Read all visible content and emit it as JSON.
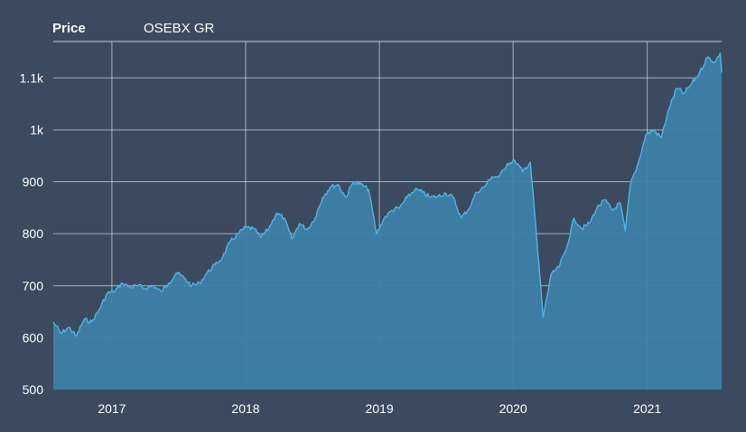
{
  "header": {
    "price_label": "Price",
    "series_label": "OSEBX GR"
  },
  "colors": {
    "background": "#3b4a5e",
    "grid": "#c9d2dc",
    "line": "#4fb4e6",
    "fill": "#3d7fa8",
    "text": "#ffffff"
  },
  "chart_data": {
    "type": "area",
    "title": "Price",
    "xlabel": "",
    "ylabel": "",
    "legend": "top-left",
    "grid": true,
    "xlim": [
      "2016-07-25",
      "2021-07-23"
    ],
    "ylim": [
      500,
      1170
    ],
    "y_ticks": [
      {
        "value": 500,
        "label": "500"
      },
      {
        "value": 600,
        "label": "600"
      },
      {
        "value": 700,
        "label": "700"
      },
      {
        "value": 800,
        "label": "800"
      },
      {
        "value": 900,
        "label": "900"
      },
      {
        "value": 1000,
        "label": "1k"
      },
      {
        "value": 1100,
        "label": "1.1k"
      }
    ],
    "x_ticks": [
      {
        "value": "2017-01-01",
        "label": "2017"
      },
      {
        "value": "2018-01-01",
        "label": "2018"
      },
      {
        "value": "2019-01-01",
        "label": "2019"
      },
      {
        "value": "2020-01-01",
        "label": "2020"
      },
      {
        "value": "2021-01-01",
        "label": "2021"
      }
    ],
    "series": [
      {
        "name": "OSEBX GR",
        "points": [
          [
            "2016-07-25",
            630
          ],
          [
            "2016-08-15",
            608
          ],
          [
            "2016-09-05",
            620
          ],
          [
            "2016-09-26",
            603
          ],
          [
            "2016-10-17",
            635
          ],
          [
            "2016-11-07",
            630
          ],
          [
            "2016-11-28",
            655
          ],
          [
            "2016-12-19",
            685
          ],
          [
            "2017-01-09",
            690
          ],
          [
            "2017-01-30",
            705
          ],
          [
            "2017-02-20",
            697
          ],
          [
            "2017-03-13",
            700
          ],
          [
            "2017-04-03",
            695
          ],
          [
            "2017-04-24",
            700
          ],
          [
            "2017-05-15",
            688
          ],
          [
            "2017-06-05",
            705
          ],
          [
            "2017-06-26",
            725
          ],
          [
            "2017-07-17",
            715
          ],
          [
            "2017-08-07",
            700
          ],
          [
            "2017-08-28",
            705
          ],
          [
            "2017-09-18",
            725
          ],
          [
            "2017-10-09",
            740
          ],
          [
            "2017-10-30",
            755
          ],
          [
            "2017-11-20",
            785
          ],
          [
            "2017-12-11",
            800
          ],
          [
            "2018-01-01",
            812
          ],
          [
            "2018-01-22",
            810
          ],
          [
            "2018-02-12",
            793
          ],
          [
            "2018-03-05",
            810
          ],
          [
            "2018-03-26",
            840
          ],
          [
            "2018-04-16",
            830
          ],
          [
            "2018-05-07",
            790
          ],
          [
            "2018-05-28",
            820
          ],
          [
            "2018-06-18",
            808
          ],
          [
            "2018-07-09",
            830
          ],
          [
            "2018-07-30",
            870
          ],
          [
            "2018-08-20",
            890
          ],
          [
            "2018-09-10",
            895
          ],
          [
            "2018-10-01",
            870
          ],
          [
            "2018-10-22",
            900
          ],
          [
            "2018-11-12",
            895
          ],
          [
            "2018-12-03",
            885
          ],
          [
            "2018-12-24",
            800
          ],
          [
            "2019-01-14",
            830
          ],
          [
            "2019-02-04",
            845
          ],
          [
            "2019-02-25",
            850
          ],
          [
            "2019-03-18",
            870
          ],
          [
            "2019-04-08",
            885
          ],
          [
            "2019-04-29",
            880
          ],
          [
            "2019-05-20",
            870
          ],
          [
            "2019-06-10",
            872
          ],
          [
            "2019-07-01",
            878
          ],
          [
            "2019-07-22",
            870
          ],
          [
            "2019-08-12",
            830
          ],
          [
            "2019-09-02",
            848
          ],
          [
            "2019-09-23",
            880
          ],
          [
            "2019-10-14",
            890
          ],
          [
            "2019-11-04",
            910
          ],
          [
            "2019-11-25",
            910
          ],
          [
            "2019-12-16",
            935
          ],
          [
            "2020-01-06",
            940
          ],
          [
            "2020-01-27",
            920
          ],
          [
            "2020-02-17",
            938
          ],
          [
            "2020-03-09",
            760
          ],
          [
            "2020-03-23",
            640
          ],
          [
            "2020-04-13",
            720
          ],
          [
            "2020-05-04",
            735
          ],
          [
            "2020-05-25",
            770
          ],
          [
            "2020-06-15",
            830
          ],
          [
            "2020-07-06",
            810
          ],
          [
            "2020-07-27",
            820
          ],
          [
            "2020-08-17",
            850
          ],
          [
            "2020-09-07",
            865
          ],
          [
            "2020-09-28",
            845
          ],
          [
            "2020-10-19",
            860
          ],
          [
            "2020-11-02",
            805
          ],
          [
            "2020-11-16",
            895
          ],
          [
            "2020-12-07",
            935
          ],
          [
            "2020-12-28",
            990
          ],
          [
            "2021-01-18",
            1000
          ],
          [
            "2021-02-08",
            985
          ],
          [
            "2021-03-01",
            1040
          ],
          [
            "2021-03-22",
            1080
          ],
          [
            "2021-04-12",
            1070
          ],
          [
            "2021-05-03",
            1090
          ],
          [
            "2021-05-24",
            1110
          ],
          [
            "2021-06-14",
            1140
          ],
          [
            "2021-07-05",
            1130
          ],
          [
            "2021-07-19",
            1148
          ],
          [
            "2021-07-23",
            1110
          ]
        ]
      }
    ]
  }
}
